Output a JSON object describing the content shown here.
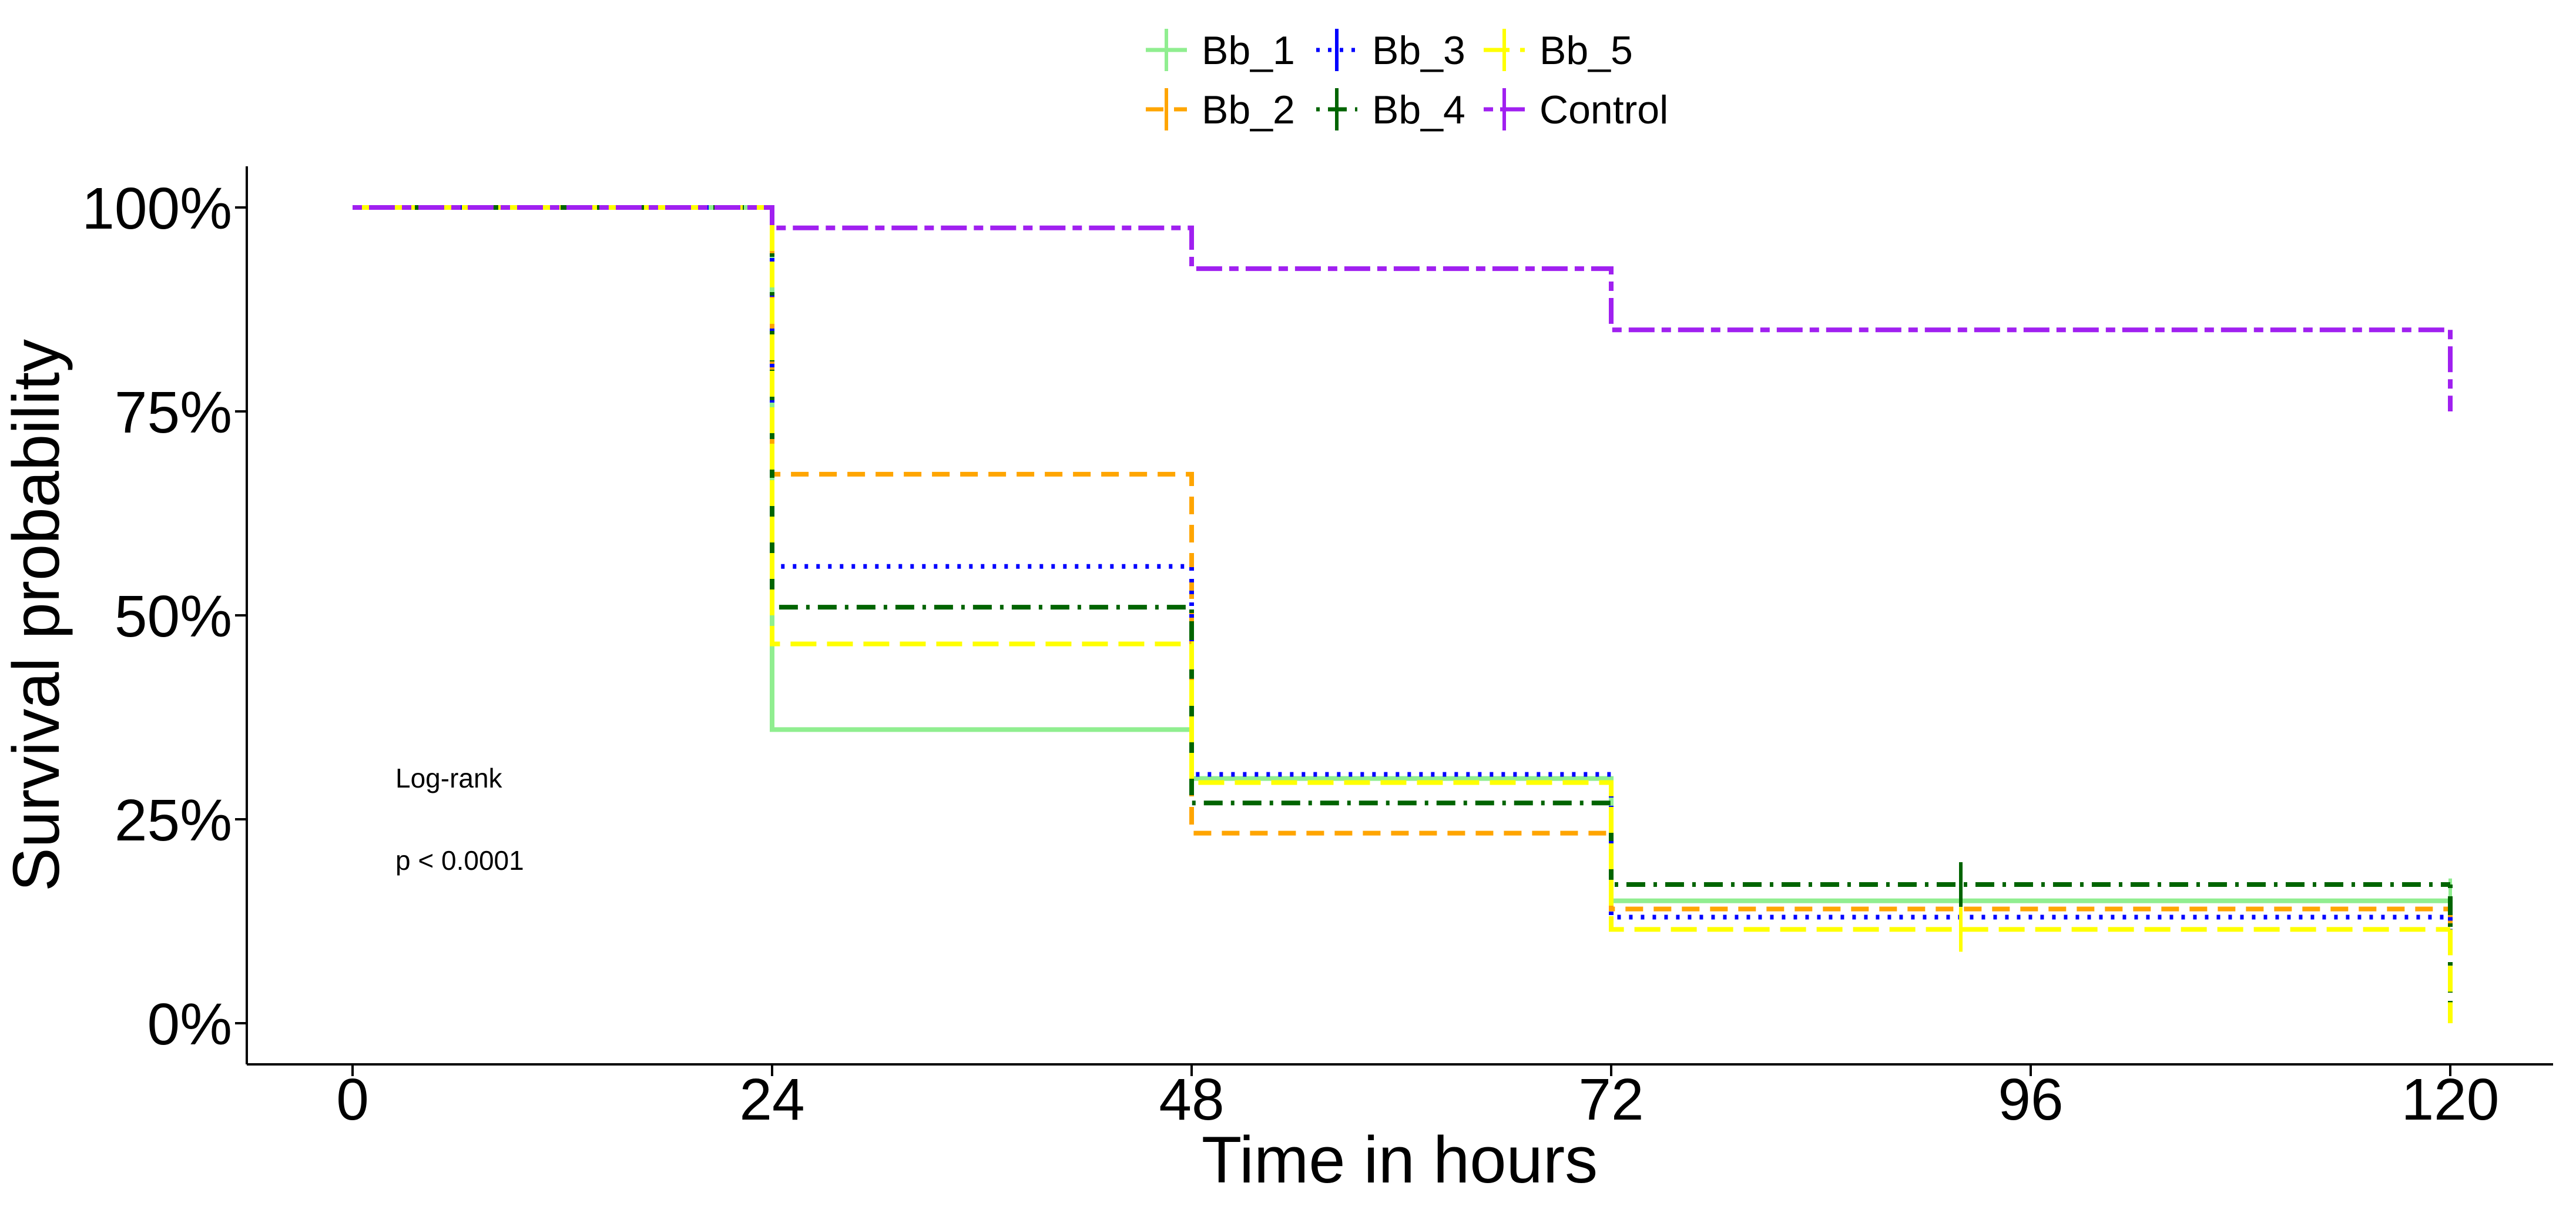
{
  "chart_data": {
    "type": "line",
    "xlabel": "Time in hours",
    "ylabel": "Survival probability",
    "x_ticks": [
      0,
      24,
      48,
      72,
      96,
      120
    ],
    "y_ticks": [
      0,
      0.25,
      0.5,
      0.75,
      1.0
    ],
    "y_tick_labels": [
      "0%",
      "25%",
      "50%",
      "75%",
      "100%"
    ],
    "xlim": [
      -6,
      126
    ],
    "ylim": [
      -0.05,
      1.05
    ],
    "grid": false,
    "legend_position": "top",
    "annotations": [
      "Log-rank",
      "p < 0.0001"
    ],
    "series": [
      {
        "name": "Bb_1",
        "color": "#90EE90",
        "dash": "solid",
        "steps": [
          [
            0,
            1.0
          ],
          [
            24,
            0.36
          ],
          [
            48,
            0.3
          ],
          [
            72,
            0.15
          ],
          [
            120,
            0.15
          ]
        ],
        "end_time": 120,
        "end_drop_to": 0.13,
        "censor": [
          [
            120,
            0.15
          ]
        ]
      },
      {
        "name": "Bb_2",
        "color": "#FFA500",
        "dash": "dashed",
        "steps": [
          [
            0,
            1.0
          ],
          [
            24,
            0.673
          ],
          [
            48,
            0.233
          ],
          [
            72,
            0.14
          ],
          [
            120,
            0.14
          ]
        ],
        "end_time": 120,
        "end_drop_to": 0.11,
        "censor": []
      },
      {
        "name": "Bb_3",
        "color": "#0000FF",
        "dash": "dotted",
        "steps": [
          [
            0,
            1.0
          ],
          [
            24,
            0.56
          ],
          [
            48,
            0.305
          ],
          [
            72,
            0.13
          ],
          [
            120,
            0.13
          ]
        ],
        "end_time": 120,
        "end_drop_to": 0.1,
        "censor": []
      },
      {
        "name": "Bb_4",
        "color": "#006400",
        "dash": "dotdash",
        "steps": [
          [
            0,
            1.0
          ],
          [
            24,
            0.51
          ],
          [
            48,
            0.27
          ],
          [
            72,
            0.17
          ],
          [
            120,
            0.17
          ]
        ],
        "end_time": 120,
        "end_drop_to": 0.02,
        "censor": [
          [
            92,
            0.17
          ]
        ]
      },
      {
        "name": "Bb_5",
        "color": "#FFFF00",
        "dash": "longdash",
        "steps": [
          [
            0,
            1.0
          ],
          [
            24,
            0.465
          ],
          [
            48,
            0.295
          ],
          [
            72,
            0.115
          ],
          [
            120,
            0.115
          ]
        ],
        "end_time": 120,
        "end_drop_to": 0.0,
        "censor": [
          [
            92,
            0.115
          ]
        ]
      },
      {
        "name": "Control",
        "color": "#A020F0",
        "dash": "twodash",
        "steps": [
          [
            0,
            1.0
          ],
          [
            24,
            0.975
          ],
          [
            48,
            0.925
          ],
          [
            72,
            0.85
          ],
          [
            120,
            0.85
          ]
        ],
        "end_time": 120,
        "end_drop_to": 0.75,
        "censor": []
      }
    ]
  }
}
